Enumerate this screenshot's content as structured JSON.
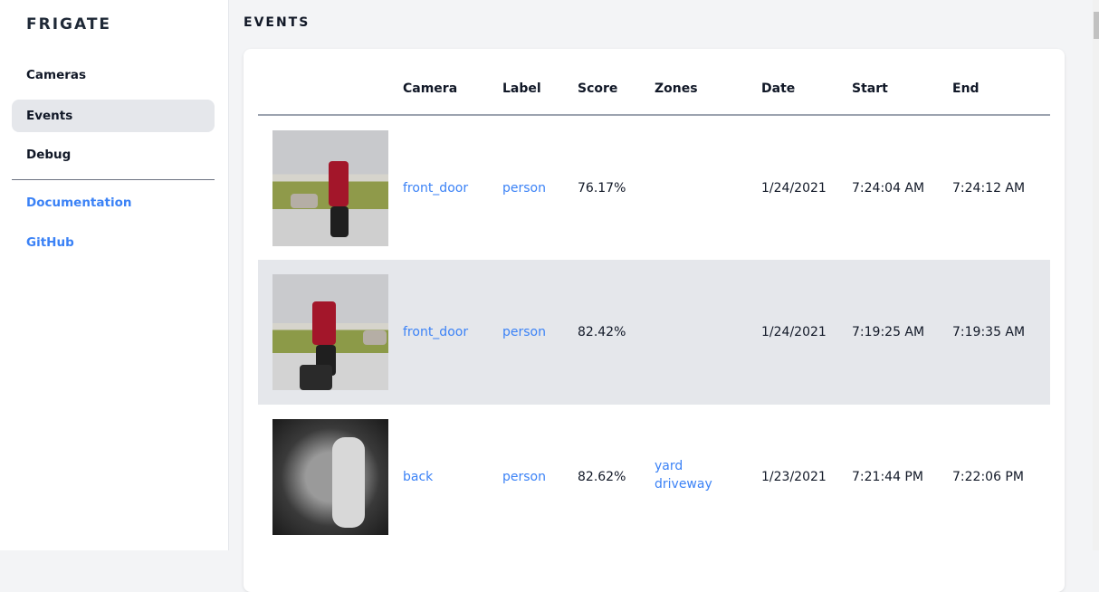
{
  "sidebar": {
    "brand": "FRIGATE",
    "items": [
      {
        "label": "Cameras"
      },
      {
        "label": "Events",
        "active": true
      },
      {
        "label": "Debug"
      }
    ],
    "links": [
      {
        "label": "Documentation"
      },
      {
        "label": "GitHub"
      }
    ]
  },
  "page": {
    "title": "EVENTS"
  },
  "table": {
    "headers": [
      "",
      "Camera",
      "Label",
      "Score",
      "Zones",
      "Date",
      "Start",
      "End"
    ],
    "rows": [
      {
        "camera": "front_door",
        "label": "person",
        "score": "76.17%",
        "zones": [
          "",
          ""
        ],
        "date": "1/24/2021",
        "start": "7:24:04 AM",
        "end": "7:24:12 AM"
      },
      {
        "camera": "front_door",
        "label": "person",
        "score": "82.42%",
        "zones": [
          "",
          ""
        ],
        "date": "1/24/2021",
        "start": "7:19:25 AM",
        "end": "7:19:35 AM"
      },
      {
        "camera": "back",
        "label": "person",
        "score": "82.62%",
        "zones": [
          "yard",
          "driveway"
        ],
        "date": "1/23/2021",
        "start": "7:21:44 PM",
        "end": "7:22:06 PM"
      }
    ]
  },
  "colors": {
    "link": "#3b82f6",
    "active_bg": "#e5e7eb"
  }
}
